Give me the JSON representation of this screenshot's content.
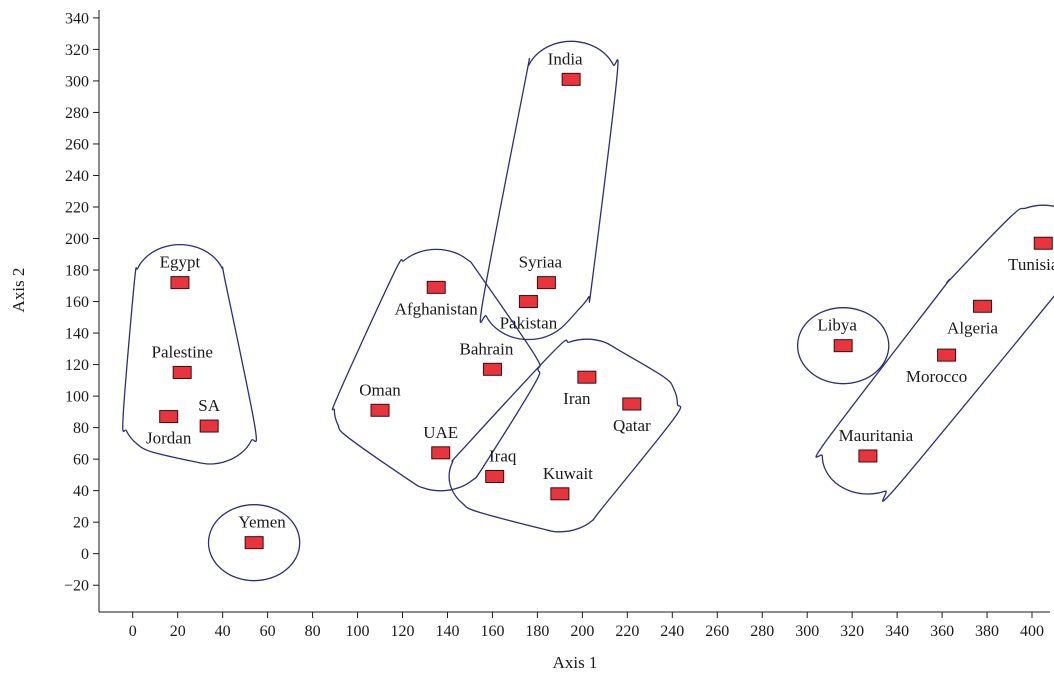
{
  "chart_data": {
    "type": "scatter",
    "title": "",
    "xlabel": "Axis 1",
    "ylabel": "Axis 2",
    "xlim": [
      -15,
      408
    ],
    "ylim": [
      -37,
      345
    ],
    "x_ticks": [
      0,
      20,
      40,
      60,
      80,
      100,
      120,
      140,
      160,
      180,
      200,
      220,
      240,
      260,
      280,
      300,
      320,
      340,
      360,
      380,
      400
    ],
    "y_ticks": [
      -20,
      0,
      20,
      40,
      60,
      80,
      100,
      120,
      140,
      160,
      180,
      200,
      220,
      240,
      260,
      280,
      300,
      320,
      340
    ],
    "y_tick_labels": [
      "−20",
      "0",
      "20",
      "40",
      "60",
      "80",
      "100",
      "120",
      "140",
      "160",
      "180",
      "200",
      "220",
      "240",
      "260",
      "280",
      "300",
      "320",
      "340"
    ],
    "grid": false,
    "colors": {
      "marker_fill": "#e8353d",
      "marker_stroke": "#3a0d0d",
      "cluster_stroke": "#2b2f7a",
      "axis": "#1a1a1a"
    },
    "points": [
      {
        "label": "Egypt",
        "x": 21,
        "y": 172,
        "label_pos": "above"
      },
      {
        "label": "Palestine",
        "x": 22,
        "y": 115,
        "label_pos": "above"
      },
      {
        "label": "Jordan",
        "x": 16,
        "y": 87,
        "label_pos": "below"
      },
      {
        "label": "SA",
        "x": 34,
        "y": 81,
        "label_pos": "above"
      },
      {
        "label": "Yemen",
        "x": 54,
        "y": 7,
        "label_pos": "above-right"
      },
      {
        "label": "Afghanistan",
        "x": 135,
        "y": 169,
        "label_pos": "below"
      },
      {
        "label": "Oman",
        "x": 110,
        "y": 91,
        "label_pos": "above"
      },
      {
        "label": "Bahrain",
        "x": 160,
        "y": 117,
        "label_pos": "above-left"
      },
      {
        "label": "UAE",
        "x": 137,
        "y": 64,
        "label_pos": "above"
      },
      {
        "label": "India",
        "x": 195,
        "y": 301,
        "label_pos": "above-left"
      },
      {
        "label": "Syriaa",
        "x": 184,
        "y": 172,
        "label_pos": "above-left"
      },
      {
        "label": "Pakistan",
        "x": 176,
        "y": 160,
        "label_pos": "below"
      },
      {
        "label": "Iran",
        "x": 202,
        "y": 112,
        "label_pos": "below-left"
      },
      {
        "label": "Qatar",
        "x": 222,
        "y": 95,
        "label_pos": "below"
      },
      {
        "label": "Iraq",
        "x": 161,
        "y": 49,
        "label_pos": "above-right"
      },
      {
        "label": "Kuwait",
        "x": 190,
        "y": 38,
        "label_pos": "above-right"
      },
      {
        "label": "Libya",
        "x": 316,
        "y": 132,
        "label_pos": "above-left"
      },
      {
        "label": "Mauritania",
        "x": 327,
        "y": 62,
        "label_pos": "above-right"
      },
      {
        "label": "Morocco",
        "x": 362,
        "y": 126,
        "label_pos": "below-left"
      },
      {
        "label": "Algeria",
        "x": 378,
        "y": 157,
        "label_pos": "below-left"
      },
      {
        "label": "Tunisia",
        "x": 405,
        "y": 197,
        "label_pos": "below-left"
      }
    ],
    "clusters": [
      [
        "Egypt",
        "Palestine",
        "Jordan",
        "SA"
      ],
      [
        "Yemen"
      ],
      [
        "Afghanistan",
        "Oman",
        "Bahrain",
        "UAE"
      ],
      [
        "India",
        "Syriaa",
        "Pakistan"
      ],
      [
        "Iran",
        "Qatar",
        "Iraq",
        "Kuwait"
      ],
      [
        "Libya"
      ],
      [
        "Mauritania",
        "Morocco",
        "Algeria",
        "Tunisia"
      ]
    ]
  }
}
